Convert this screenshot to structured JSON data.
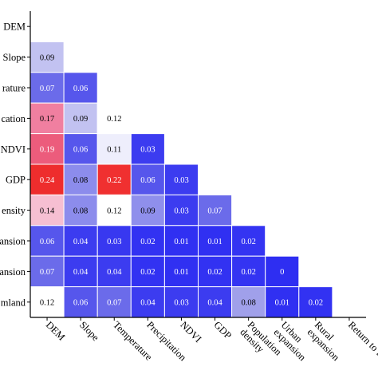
{
  "chart_data": {
    "type": "heatmap",
    "title": "",
    "xlabel": "",
    "ylabel": "",
    "row_labels": [
      "DEM",
      "Slope",
      "rature",
      "cation",
      "NDVI",
      "GDP",
      "ensity",
      "ansion",
      "ansion",
      "mland"
    ],
    "col_labels": [
      "DEM",
      "Slope",
      "Temperature",
      "Precipitation",
      "NDVI",
      "GDP",
      "Population density",
      "Urban expansion",
      "Rural expansion",
      "Return to forest"
    ],
    "values": [
      [
        null,
        null,
        null,
        null,
        null,
        null,
        null,
        null,
        null,
        null
      ],
      [
        0.09,
        null,
        null,
        null,
        null,
        null,
        null,
        null,
        null,
        null
      ],
      [
        0.07,
        0.06,
        null,
        null,
        null,
        null,
        null,
        null,
        null,
        null
      ],
      [
        0.17,
        0.09,
        0.12,
        null,
        null,
        null,
        null,
        null,
        null,
        null
      ],
      [
        0.19,
        0.06,
        0.11,
        0.03,
        null,
        null,
        null,
        null,
        null,
        null
      ],
      [
        0.24,
        0.08,
        0.22,
        0.06,
        0.03,
        null,
        null,
        null,
        null,
        null
      ],
      [
        0.14,
        0.08,
        0.12,
        0.09,
        0.03,
        0.07,
        null,
        null,
        null,
        null
      ],
      [
        0.06,
        0.04,
        0.03,
        0.02,
        0.01,
        0.01,
        0.02,
        null,
        null,
        null
      ],
      [
        0.07,
        0.04,
        0.04,
        0.02,
        0.01,
        0.02,
        0.02,
        0,
        null,
        null
      ],
      [
        0.12,
        0.06,
        0.07,
        0.04,
        0.03,
        0.04,
        0.08,
        0.01,
        0.02,
        null
      ]
    ],
    "value_labels": [
      [
        null,
        null,
        null,
        null,
        null,
        null,
        null,
        null,
        null,
        null
      ],
      [
        "0.09",
        null,
        null,
        null,
        null,
        null,
        null,
        null,
        null,
        null
      ],
      [
        "0.07",
        "0.06",
        null,
        null,
        null,
        null,
        null,
        null,
        null,
        null
      ],
      [
        "0.17",
        "0.09",
        "0.12",
        null,
        null,
        null,
        null,
        null,
        null,
        null
      ],
      [
        "0.19",
        "0.06",
        "0.11",
        "0.03",
        null,
        null,
        null,
        null,
        null,
        null
      ],
      [
        "0.24",
        "0.08",
        "0.22",
        "0.06",
        "0.03",
        null,
        null,
        null,
        null,
        null
      ],
      [
        "0.14",
        "0.08",
        "0.12",
        "0.09",
        "0.03",
        "0.07",
        null,
        null,
        null,
        null
      ],
      [
        "0.06",
        "0.04",
        "0.03",
        "0.02",
        "0.01",
        "0.01",
        "0.02",
        null,
        null,
        null
      ],
      [
        "0.07",
        "0.04",
        "0.04",
        "0.02",
        "0.01",
        "0.02",
        "0.02",
        "0",
        null,
        null
      ],
      [
        "0.12",
        "0.06",
        "0.07",
        "0.04",
        "0.03",
        "0.04",
        "0.08",
        "0.01",
        "0.02",
        null
      ]
    ],
    "cell_colors": [
      [
        null,
        null,
        null,
        null,
        null,
        null,
        null,
        null,
        null,
        null
      ],
      [
        "#c2c2f1",
        null,
        null,
        null,
        null,
        null,
        null,
        null,
        null,
        null
      ],
      [
        "#6b6bea",
        "#5656ec",
        null,
        null,
        null,
        null,
        null,
        null,
        null,
        null
      ],
      [
        "#f07fa0",
        "#c2c2f1",
        "#ffffff",
        null,
        null,
        null,
        null,
        null,
        null,
        null
      ],
      [
        "#ec5c7c",
        "#5656ec",
        "#eeeefc",
        "#3c3cf0",
        null,
        null,
        null,
        null,
        null,
        null
      ],
      [
        "#ee2d2d",
        "#8c8cec",
        "#f03030",
        "#5656ec",
        "#3c3cf0",
        null,
        null,
        null,
        null,
        null
      ],
      [
        "#f6bfd2",
        "#8c8cec",
        "#ffffff",
        "#8f8fec",
        "#3c3cf0",
        "#6b6bea",
        null,
        null,
        null,
        null
      ],
      [
        "#5656ec",
        "#3c3cf0",
        "#3838f0",
        "#3232f2",
        "#3030f2",
        "#3030f2",
        "#3434f2",
        null,
        null,
        null
      ],
      [
        "#6b6bea",
        "#3c3cf0",
        "#3c3cf0",
        "#3232f2",
        "#3030f2",
        "#3232f2",
        "#3434f2",
        "#2e2ef2",
        null,
        null
      ],
      [
        "#ffffff",
        "#5656ec",
        "#6b6bea",
        "#3c3cf0",
        "#3c3cf0",
        "#3c3cf0",
        "#a0a0ea",
        "#3030f2",
        "#3232f2",
        null
      ]
    ],
    "text_colors": {
      "on_dark": "#ffffff",
      "on_light": "#000000"
    },
    "grid": false,
    "legend": "none"
  }
}
